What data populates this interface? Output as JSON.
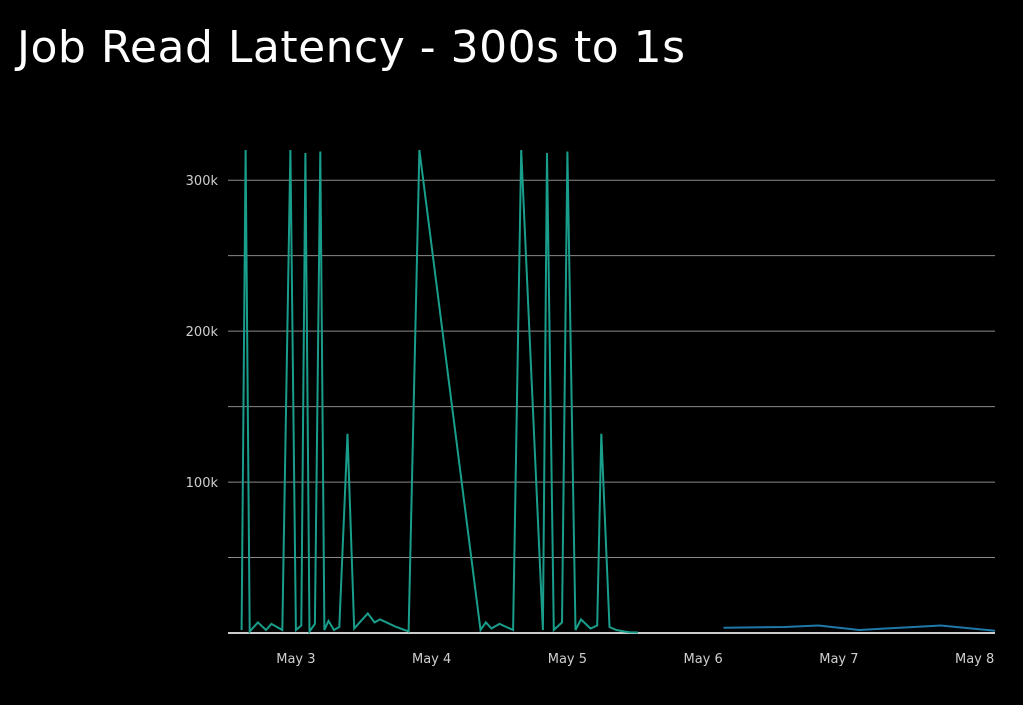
{
  "title": "Job Read Latency - 300s to 1s",
  "chart_data": {
    "type": "line",
    "title": "Job Read Latency - 300s to 1s",
    "xlabel": "",
    "ylabel": "",
    "ylim": [
      0,
      320000
    ],
    "yticks": [
      {
        "value": 100000,
        "label": "100k"
      },
      {
        "value": 200000,
        "label": "200k"
      },
      {
        "value": 300000,
        "label": "300k"
      }
    ],
    "xlim": [
      2.5,
      8.15
    ],
    "xticks": [
      {
        "value": 3,
        "label": "May 3"
      },
      {
        "value": 4,
        "label": "May 4"
      },
      {
        "value": 5,
        "label": "May 5"
      },
      {
        "value": 6,
        "label": "May 6"
      },
      {
        "value": 7,
        "label": "May 7"
      },
      {
        "value": 8,
        "label": "May 8"
      }
    ],
    "grid": true,
    "colors": {
      "series_a": "#1a9e8c",
      "series_b": "#1f78a8",
      "baseline": "#cccccc",
      "grid": "#8a8a8a"
    },
    "series": [
      {
        "x": [
          2.6,
          2.63,
          2.66,
          2.72,
          2.78,
          2.82,
          2.9,
          2.96,
          3.0,
          3.04,
          3.07,
          3.1,
          3.14,
          3.18,
          3.21,
          3.24,
          3.28,
          3.32,
          3.38,
          3.43,
          3.48,
          3.53,
          3.58,
          3.62,
          3.74,
          3.83,
          3.91,
          4.36,
          4.4,
          4.44,
          4.5,
          4.55,
          4.6,
          4.66,
          4.82,
          4.85,
          4.9,
          4.96,
          5.0,
          5.06,
          5.1,
          5.17,
          5.22,
          5.25,
          5.31,
          5.36,
          5.42,
          5.46,
          5.52
        ],
        "values": [
          2000,
          320000,
          1000,
          7000,
          2000,
          6000,
          2000,
          320000,
          2000,
          5000,
          318000,
          1000,
          6000,
          319000,
          2000,
          8000,
          2000,
          4000,
          132000,
          3000,
          8000,
          13000,
          7000,
          9000,
          4000,
          1000,
          320000,
          2000,
          7000,
          3000,
          6000,
          4000,
          2000,
          320000,
          2000,
          318000,
          2000,
          7000,
          319000,
          2000,
          9000,
          3000,
          5000,
          132000,
          4000,
          2000,
          1000,
          500,
          300
        ]
      },
      {
        "x": [
          6.15,
          6.6,
          6.85,
          7.15,
          7.45,
          7.75,
          8.15
        ],
        "values": [
          3500,
          4000,
          5000,
          2000,
          3500,
          5000,
          1500
        ]
      }
    ]
  }
}
